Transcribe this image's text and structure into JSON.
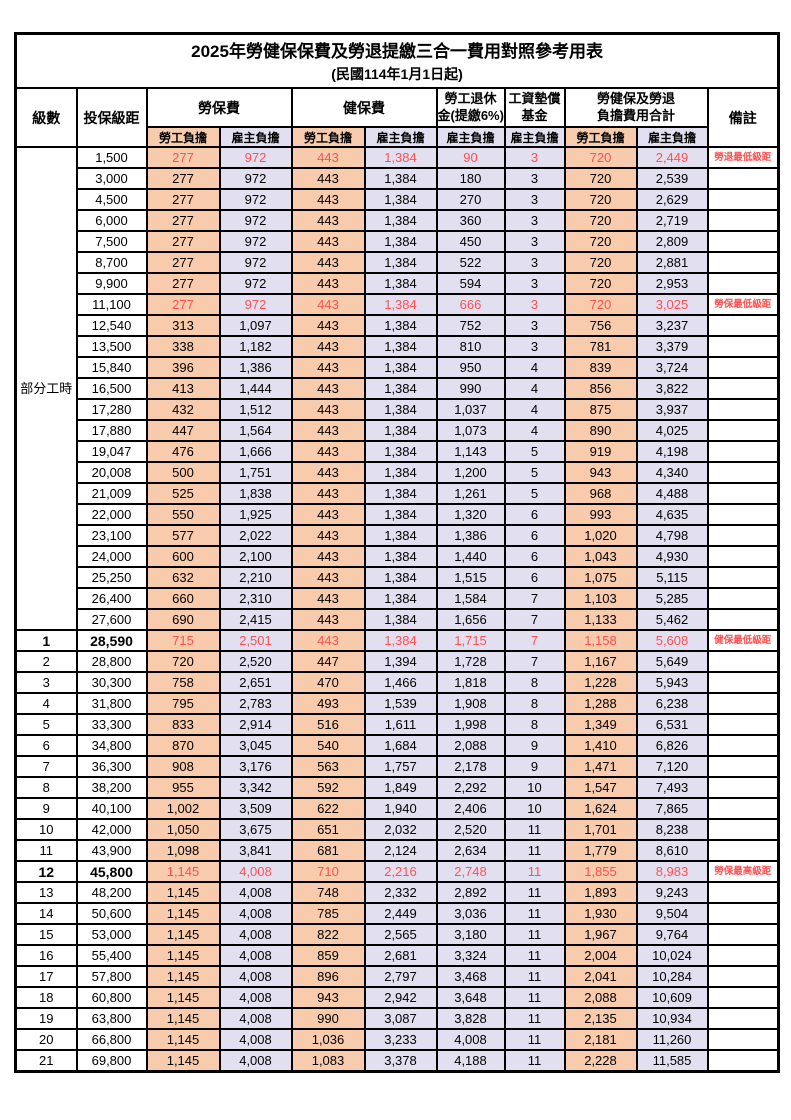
{
  "title": "2025年勞健保保費及勞退提繳三合一費用對照參考用表",
  "subtitle": "(民國114年1月1日起)",
  "header": {
    "level": "級數",
    "bracket": "投保級距",
    "labor_ins": "勞保費",
    "health_ins": "健保費",
    "pension_line1": "勞工退休",
    "pension_line2": "金(提繳6%)",
    "wage_fund_line1": "工資墊償",
    "wage_fund_line2": "基金",
    "total_line1": "勞健保及勞退",
    "total_line2": "負擔費用合計",
    "remark": "備註",
    "employee": "勞工負擔",
    "employer": "雇主負擔"
  },
  "part_time_label": "部分工時",
  "part_time_rowspan": 23,
  "colors": {
    "employee_bg": "#F8CBAD",
    "employer_bg": "#E2E0F0",
    "highlight_red": "#FF5050",
    "border": "#000000"
  },
  "rows": [
    {
      "level": "",
      "bracket": "1,500",
      "v": [
        "277",
        "972",
        "443",
        "1,384",
        "90",
        "3",
        "720",
        "2,449"
      ],
      "remark": "勞退最低級距",
      "red": true,
      "bold": false
    },
    {
      "level": "",
      "bracket": "3,000",
      "v": [
        "277",
        "972",
        "443",
        "1,384",
        "180",
        "3",
        "720",
        "2,539"
      ],
      "remark": "",
      "red": false,
      "bold": false
    },
    {
      "level": "",
      "bracket": "4,500",
      "v": [
        "277",
        "972",
        "443",
        "1,384",
        "270",
        "3",
        "720",
        "2,629"
      ],
      "remark": "",
      "red": false,
      "bold": false
    },
    {
      "level": "",
      "bracket": "6,000",
      "v": [
        "277",
        "972",
        "443",
        "1,384",
        "360",
        "3",
        "720",
        "2,719"
      ],
      "remark": "",
      "red": false,
      "bold": false
    },
    {
      "level": "",
      "bracket": "7,500",
      "v": [
        "277",
        "972",
        "443",
        "1,384",
        "450",
        "3",
        "720",
        "2,809"
      ],
      "remark": "",
      "red": false,
      "bold": false
    },
    {
      "level": "",
      "bracket": "8,700",
      "v": [
        "277",
        "972",
        "443",
        "1,384",
        "522",
        "3",
        "720",
        "2,881"
      ],
      "remark": "",
      "red": false,
      "bold": false
    },
    {
      "level": "",
      "bracket": "9,900",
      "v": [
        "277",
        "972",
        "443",
        "1,384",
        "594",
        "3",
        "720",
        "2,953"
      ],
      "remark": "",
      "red": false,
      "bold": false
    },
    {
      "level": "",
      "bracket": "11,100",
      "v": [
        "277",
        "972",
        "443",
        "1,384",
        "666",
        "3",
        "720",
        "3,025"
      ],
      "remark": "勞保最低級距",
      "red": true,
      "bold": false
    },
    {
      "level": "",
      "bracket": "12,540",
      "v": [
        "313",
        "1,097",
        "443",
        "1,384",
        "752",
        "3",
        "756",
        "3,237"
      ],
      "remark": "",
      "red": false,
      "bold": false
    },
    {
      "level": "",
      "bracket": "13,500",
      "v": [
        "338",
        "1,182",
        "443",
        "1,384",
        "810",
        "3",
        "781",
        "3,379"
      ],
      "remark": "",
      "red": false,
      "bold": false
    },
    {
      "level": "",
      "bracket": "15,840",
      "v": [
        "396",
        "1,386",
        "443",
        "1,384",
        "950",
        "4",
        "839",
        "3,724"
      ],
      "remark": "",
      "red": false,
      "bold": false
    },
    {
      "level": "",
      "bracket": "16,500",
      "v": [
        "413",
        "1,444",
        "443",
        "1,384",
        "990",
        "4",
        "856",
        "3,822"
      ],
      "remark": "",
      "red": false,
      "bold": false
    },
    {
      "level": "",
      "bracket": "17,280",
      "v": [
        "432",
        "1,512",
        "443",
        "1,384",
        "1,037",
        "4",
        "875",
        "3,937"
      ],
      "remark": "",
      "red": false,
      "bold": false
    },
    {
      "level": "",
      "bracket": "17,880",
      "v": [
        "447",
        "1,564",
        "443",
        "1,384",
        "1,073",
        "4",
        "890",
        "4,025"
      ],
      "remark": "",
      "red": false,
      "bold": false
    },
    {
      "level": "",
      "bracket": "19,047",
      "v": [
        "476",
        "1,666",
        "443",
        "1,384",
        "1,143",
        "5",
        "919",
        "4,198"
      ],
      "remark": "",
      "red": false,
      "bold": false
    },
    {
      "level": "",
      "bracket": "20,008",
      "v": [
        "500",
        "1,751",
        "443",
        "1,384",
        "1,200",
        "5",
        "943",
        "4,340"
      ],
      "remark": "",
      "red": false,
      "bold": false
    },
    {
      "level": "",
      "bracket": "21,009",
      "v": [
        "525",
        "1,838",
        "443",
        "1,384",
        "1,261",
        "5",
        "968",
        "4,488"
      ],
      "remark": "",
      "red": false,
      "bold": false
    },
    {
      "level": "",
      "bracket": "22,000",
      "v": [
        "550",
        "1,925",
        "443",
        "1,384",
        "1,320",
        "6",
        "993",
        "4,635"
      ],
      "remark": "",
      "red": false,
      "bold": false
    },
    {
      "level": "",
      "bracket": "23,100",
      "v": [
        "577",
        "2,022",
        "443",
        "1,384",
        "1,386",
        "6",
        "1,020",
        "4,798"
      ],
      "remark": "",
      "red": false,
      "bold": false
    },
    {
      "level": "",
      "bracket": "24,000",
      "v": [
        "600",
        "2,100",
        "443",
        "1,384",
        "1,440",
        "6",
        "1,043",
        "4,930"
      ],
      "remark": "",
      "red": false,
      "bold": false
    },
    {
      "level": "",
      "bracket": "25,250",
      "v": [
        "632",
        "2,210",
        "443",
        "1,384",
        "1,515",
        "6",
        "1,075",
        "5,115"
      ],
      "remark": "",
      "red": false,
      "bold": false
    },
    {
      "level": "",
      "bracket": "26,400",
      "v": [
        "660",
        "2,310",
        "443",
        "1,384",
        "1,584",
        "7",
        "1,103",
        "5,285"
      ],
      "remark": "",
      "red": false,
      "bold": false
    },
    {
      "level": "",
      "bracket": "27,600",
      "v": [
        "690",
        "2,415",
        "443",
        "1,384",
        "1,656",
        "7",
        "1,133",
        "5,462"
      ],
      "remark": "",
      "red": false,
      "bold": false
    },
    {
      "level": "1",
      "bracket": "28,590",
      "v": [
        "715",
        "2,501",
        "443",
        "1,384",
        "1,715",
        "7",
        "1,158",
        "5,608"
      ],
      "remark": "健保最低級距",
      "red": true,
      "bold": true
    },
    {
      "level": "2",
      "bracket": "28,800",
      "v": [
        "720",
        "2,520",
        "447",
        "1,394",
        "1,728",
        "7",
        "1,167",
        "5,649"
      ],
      "remark": "",
      "red": false,
      "bold": false
    },
    {
      "level": "3",
      "bracket": "30,300",
      "v": [
        "758",
        "2,651",
        "470",
        "1,466",
        "1,818",
        "8",
        "1,228",
        "5,943"
      ],
      "remark": "",
      "red": false,
      "bold": false
    },
    {
      "level": "4",
      "bracket": "31,800",
      "v": [
        "795",
        "2,783",
        "493",
        "1,539",
        "1,908",
        "8",
        "1,288",
        "6,238"
      ],
      "remark": "",
      "red": false,
      "bold": false
    },
    {
      "level": "5",
      "bracket": "33,300",
      "v": [
        "833",
        "2,914",
        "516",
        "1,611",
        "1,998",
        "8",
        "1,349",
        "6,531"
      ],
      "remark": "",
      "red": false,
      "bold": false
    },
    {
      "level": "6",
      "bracket": "34,800",
      "v": [
        "870",
        "3,045",
        "540",
        "1,684",
        "2,088",
        "9",
        "1,410",
        "6,826"
      ],
      "remark": "",
      "red": false,
      "bold": false
    },
    {
      "level": "7",
      "bracket": "36,300",
      "v": [
        "908",
        "3,176",
        "563",
        "1,757",
        "2,178",
        "9",
        "1,471",
        "7,120"
      ],
      "remark": "",
      "red": false,
      "bold": false
    },
    {
      "level": "8",
      "bracket": "38,200",
      "v": [
        "955",
        "3,342",
        "592",
        "1,849",
        "2,292",
        "10",
        "1,547",
        "7,493"
      ],
      "remark": "",
      "red": false,
      "bold": false
    },
    {
      "level": "9",
      "bracket": "40,100",
      "v": [
        "1,002",
        "3,509",
        "622",
        "1,940",
        "2,406",
        "10",
        "1,624",
        "7,865"
      ],
      "remark": "",
      "red": false,
      "bold": false
    },
    {
      "level": "10",
      "bracket": "42,000",
      "v": [
        "1,050",
        "3,675",
        "651",
        "2,032",
        "2,520",
        "11",
        "1,701",
        "8,238"
      ],
      "remark": "",
      "red": false,
      "bold": false
    },
    {
      "level": "11",
      "bracket": "43,900",
      "v": [
        "1,098",
        "3,841",
        "681",
        "2,124",
        "2,634",
        "11",
        "1,779",
        "8,610"
      ],
      "remark": "",
      "red": false,
      "bold": false
    },
    {
      "level": "12",
      "bracket": "45,800",
      "v": [
        "1,145",
        "4,008",
        "710",
        "2,216",
        "2,748",
        "11",
        "1,855",
        "8,983"
      ],
      "remark": "勞保最高級距",
      "red": true,
      "bold": true
    },
    {
      "level": "13",
      "bracket": "48,200",
      "v": [
        "1,145",
        "4,008",
        "748",
        "2,332",
        "2,892",
        "11",
        "1,893",
        "9,243"
      ],
      "remark": "",
      "red": false,
      "bold": false
    },
    {
      "level": "14",
      "bracket": "50,600",
      "v": [
        "1,145",
        "4,008",
        "785",
        "2,449",
        "3,036",
        "11",
        "1,930",
        "9,504"
      ],
      "remark": "",
      "red": false,
      "bold": false
    },
    {
      "level": "15",
      "bracket": "53,000",
      "v": [
        "1,145",
        "4,008",
        "822",
        "2,565",
        "3,180",
        "11",
        "1,967",
        "9,764"
      ],
      "remark": "",
      "red": false,
      "bold": false
    },
    {
      "level": "16",
      "bracket": "55,400",
      "v": [
        "1,145",
        "4,008",
        "859",
        "2,681",
        "3,324",
        "11",
        "2,004",
        "10,024"
      ],
      "remark": "",
      "red": false,
      "bold": false
    },
    {
      "level": "17",
      "bracket": "57,800",
      "v": [
        "1,145",
        "4,008",
        "896",
        "2,797",
        "3,468",
        "11",
        "2,041",
        "10,284"
      ],
      "remark": "",
      "red": false,
      "bold": false
    },
    {
      "level": "18",
      "bracket": "60,800",
      "v": [
        "1,145",
        "4,008",
        "943",
        "2,942",
        "3,648",
        "11",
        "2,088",
        "10,609"
      ],
      "remark": "",
      "red": false,
      "bold": false
    },
    {
      "level": "19",
      "bracket": "63,800",
      "v": [
        "1,145",
        "4,008",
        "990",
        "3,087",
        "3,828",
        "11",
        "2,135",
        "10,934"
      ],
      "remark": "",
      "red": false,
      "bold": false
    },
    {
      "level": "20",
      "bracket": "66,800",
      "v": [
        "1,145",
        "4,008",
        "1,036",
        "3,233",
        "4,008",
        "11",
        "2,181",
        "11,260"
      ],
      "remark": "",
      "red": false,
      "bold": false
    },
    {
      "level": "21",
      "bracket": "69,800",
      "v": [
        "1,145",
        "4,008",
        "1,083",
        "3,378",
        "4,188",
        "11",
        "2,228",
        "11,585"
      ],
      "remark": "",
      "red": false,
      "bold": false
    }
  ]
}
